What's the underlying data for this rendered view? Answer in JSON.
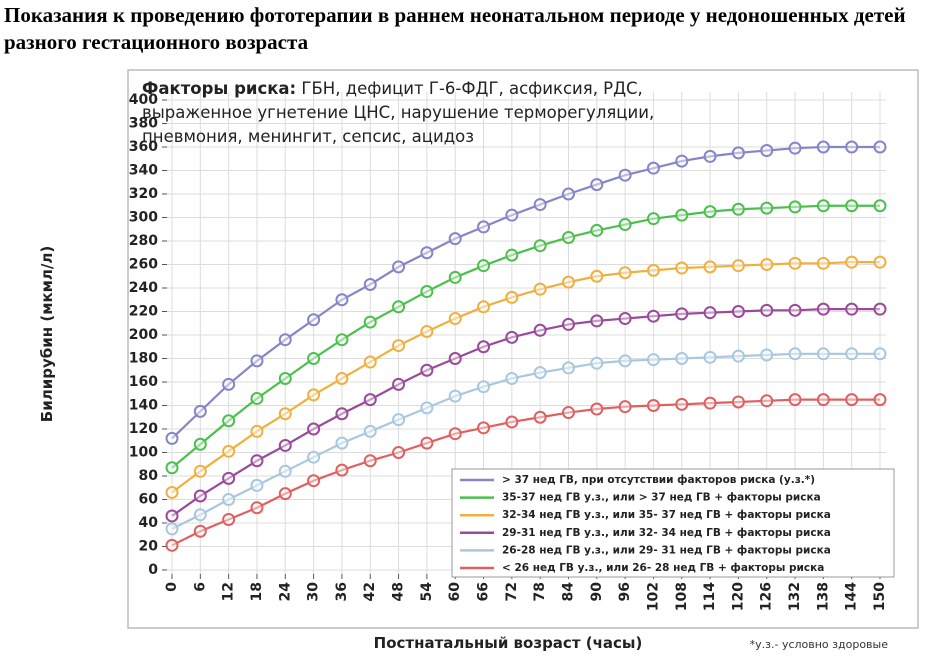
{
  "title": "Показания к проведению фототерапии в раннем неонатальном периоде у недоношенных детей разного гестационного возраста",
  "annotation": {
    "bold_label": "Факторы риска:",
    "line1_rest": " ГБН, дефицит Г-6-ФДГ, асфиксия, РДС,",
    "line2": "выраженное угнетение ЦНС, нарушение терморегуляции,",
    "line3": "пневмония,  менингит, сепсис, ацидоз"
  },
  "footnote": "*у.з.- условно здоровые",
  "chart_data": {
    "type": "line",
    "xlabel": "Постнатальный возраст (часы)",
    "ylabel": "Билирубин (мкмл/л)",
    "x": [
      0,
      6,
      12,
      18,
      24,
      30,
      36,
      42,
      48,
      54,
      60,
      66,
      72,
      78,
      84,
      90,
      96,
      102,
      108,
      114,
      120,
      126,
      132,
      138,
      144,
      150
    ],
    "x_ticks": [
      "0",
      "6",
      "12",
      "18",
      "24",
      "30",
      "36",
      "42",
      "48",
      "54",
      "60",
      "66",
      "72",
      "78",
      "84",
      "90",
      "96",
      "102",
      "108",
      "114",
      "120",
      "126",
      "132",
      "138",
      "144",
      "150"
    ],
    "ylim": [
      0,
      400
    ],
    "y_ticks": [
      0,
      20,
      40,
      60,
      80,
      100,
      120,
      140,
      160,
      180,
      200,
      220,
      240,
      260,
      280,
      300,
      320,
      340,
      360,
      380,
      400
    ],
    "grid": true,
    "legend_position": "bottom-right",
    "series": [
      {
        "name": "> 37 нед ГВ, при отсутствии факторов риска  (у.з.*)",
        "color": "#8585c8",
        "values": [
          112,
          135,
          158,
          178,
          196,
          213,
          230,
          243,
          258,
          270,
          282,
          292,
          302,
          311,
          320,
          328,
          336,
          342,
          348,
          352,
          355,
          357,
          359,
          360,
          360,
          360
        ]
      },
      {
        "name": "35-37 нед ГВ у.з., или  > 37  нед  ГВ  + факторы риска",
        "color": "#4cc04c",
        "values": [
          87,
          107,
          127,
          146,
          163,
          180,
          196,
          211,
          224,
          237,
          249,
          259,
          268,
          276,
          283,
          289,
          294,
          299,
          302,
          305,
          307,
          308,
          309,
          310,
          310,
          310
        ]
      },
      {
        "name": "32-34 нед ГВ у.з., или 35- 37 нед ГВ + факторы риска",
        "color": "#f0b040",
        "values": [
          66,
          84,
          101,
          118,
          133,
          149,
          163,
          177,
          191,
          203,
          214,
          224,
          232,
          239,
          245,
          250,
          253,
          255,
          257,
          258,
          259,
          260,
          261,
          261,
          262,
          262
        ]
      },
      {
        "name": "29-31 нед ГВ у.з., или 32- 34 нед ГВ + факторы риска",
        "color": "#9a4a9a",
        "values": [
          46,
          63,
          78,
          93,
          106,
          120,
          133,
          145,
          158,
          170,
          180,
          190,
          198,
          204,
          209,
          212,
          214,
          216,
          218,
          219,
          220,
          221,
          221,
          222,
          222,
          222
        ]
      },
      {
        "name": "26-28 нед ГВ у.з., или 29- 31 нед ГВ + факторы риска",
        "color": "#a8c8e0",
        "values": [
          35,
          47,
          60,
          72,
          84,
          96,
          108,
          118,
          128,
          138,
          148,
          156,
          163,
          168,
          172,
          176,
          178,
          179,
          180,
          181,
          182,
          183,
          184,
          184,
          184,
          184
        ]
      },
      {
        "name": "< 26 нед ГВ у.з.,   или 26- 28 нед ГВ + факторы риска",
        "color": "#e06060",
        "values": [
          21,
          33,
          43,
          53,
          65,
          76,
          85,
          93,
          100,
          108,
          116,
          121,
          126,
          130,
          134,
          137,
          139,
          140,
          141,
          142,
          143,
          144,
          145,
          145,
          145,
          145
        ]
      }
    ]
  }
}
